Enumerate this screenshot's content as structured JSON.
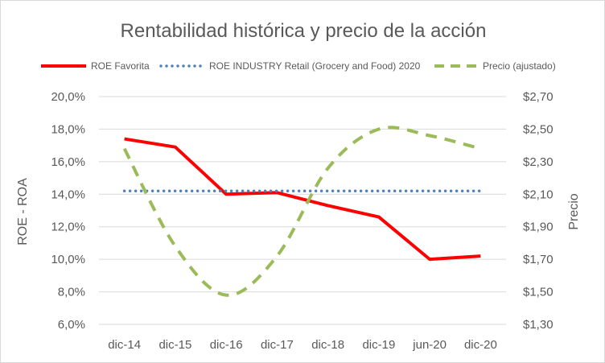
{
  "chart_data": {
    "type": "line",
    "title": "Rentabilidad histórica y precio de la acción",
    "categories": [
      "dic-14",
      "dic-15",
      "dic-16",
      "dic-17",
      "dic-18",
      "dic-19",
      "jun-20",
      "dic-20"
    ],
    "ylabel": "ROE - ROA",
    "y2label": "Precio",
    "ylim": [
      6,
      20
    ],
    "y2lim": [
      1.3,
      2.7
    ],
    "y_ticks": [
      "6,0%",
      "8,0%",
      "10,0%",
      "12,0%",
      "14,0%",
      "16,0%",
      "18,0%",
      "20,0%"
    ],
    "y2_ticks": [
      "$1,30",
      "$1,50",
      "$1,70",
      "$1,90",
      "$2,10",
      "$2,30",
      "$2,50",
      "$2,70"
    ],
    "grid": true,
    "legend_position": "top",
    "series": [
      {
        "name": "ROE Favorita",
        "axis": "left",
        "style": "solid",
        "color": "#ff0000",
        "values": [
          17.4,
          16.9,
          14.0,
          14.1,
          13.3,
          12.6,
          10.0,
          10.2
        ]
      },
      {
        "name": "ROE INDUSTRY Retail (Grocery and Food) 2020",
        "axis": "left",
        "style": "dotted",
        "color": "#4f81bd",
        "values": [
          14.2,
          14.2,
          14.2,
          14.2,
          14.2,
          14.2,
          14.2,
          14.2
        ]
      },
      {
        "name": "Precio (ajustado)",
        "axis": "right",
        "style": "dashed",
        "color": "#9bbb59",
        "values": [
          2.38,
          1.78,
          1.48,
          1.72,
          2.26,
          2.5,
          2.46,
          2.38
        ]
      }
    ]
  }
}
